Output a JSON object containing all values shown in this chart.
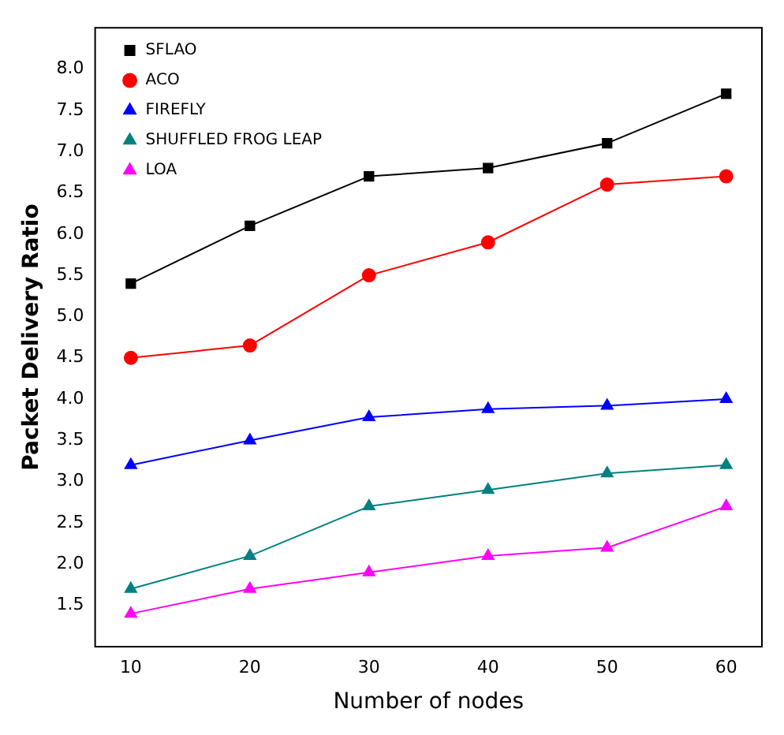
{
  "chart_data": {
    "type": "line",
    "xlabel": "Number of nodes",
    "ylabel": "Packet Delivery Ratio",
    "x": [
      10,
      20,
      30,
      40,
      50,
      60
    ],
    "xlim": [
      7,
      63
    ],
    "xticks": [
      10,
      20,
      30,
      40,
      50,
      60
    ],
    "ylim": [
      1,
      8.5
    ],
    "yticks": [
      1.5,
      {
        "value": 2,
        "label": "2.0"
      },
      2.5,
      {
        "value": 3,
        "label": "3.0"
      },
      3.5,
      {
        "value": 4,
        "label": "4.0"
      },
      4.5,
      {
        "value": 5,
        "label": "5.0"
      },
      5.5,
      {
        "value": 6,
        "label": "6.0"
      },
      6.5,
      {
        "value": 7,
        "label": "7.0"
      },
      7.5,
      {
        "value": 8,
        "label": "8.0"
      }
    ],
    "grid": false,
    "legend": "top left",
    "line_style": "solid",
    "series": [
      {
        "name": "SFLAO",
        "color": "#000000",
        "marker": "square",
        "values": [
          5.4,
          6.1,
          6.7,
          6.8,
          7.1,
          7.7
        ]
      },
      {
        "name": "ACO",
        "color": "#ff0000",
        "marker": "circle",
        "values": [
          4.5,
          4.65,
          5.5,
          5.9,
          6.6,
          6.7
        ]
      },
      {
        "name": "FIREFLY",
        "color": "#0000ff",
        "marker": "triangle",
        "values": [
          3.2,
          3.5,
          3.78,
          3.88,
          3.92,
          4.0
        ]
      },
      {
        "name": "SHUFFLED FROG LEAP",
        "color": "#008080",
        "marker": "triangle",
        "values": [
          1.7,
          2.1,
          2.7,
          2.9,
          3.1,
          3.2
        ]
      },
      {
        "name": "LOA",
        "color": "#ff00ff",
        "marker": "triangle",
        "values": [
          1.4,
          1.7,
          1.9,
          2.1,
          2.2,
          2.7
        ]
      }
    ]
  }
}
